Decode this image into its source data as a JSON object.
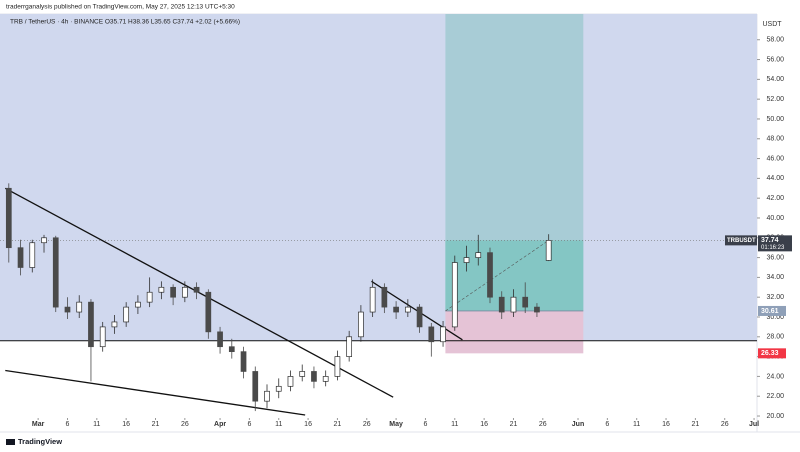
{
  "header": {
    "publisher": "traderrganalysis published on TradingView.com, May 27, 2025 12:13 UTC+5:30"
  },
  "footer": {
    "brand": "TradingView"
  },
  "chart_data": {
    "type": "candlestick",
    "legend": "TRB / TetherUS · 4h · BINANCE  O35.71  H38.36  L35.65  C37.74  +2.02 (+5.66%)",
    "y_unit": "USDT",
    "up_color": "#2e2e2e",
    "down_color": "#4a4a4a",
    "xlim": [
      -6.5,
      122.5
    ],
    "ylim": [
      19.8,
      60.6
    ],
    "xticks": [
      {
        "value": 0,
        "label": "Mar"
      },
      {
        "value": 5,
        "label": "6"
      },
      {
        "value": 10,
        "label": "11"
      },
      {
        "value": 15,
        "label": "16"
      },
      {
        "value": 20,
        "label": "21"
      },
      {
        "value": 25,
        "label": "26"
      },
      {
        "value": 31,
        "label": "Apr"
      },
      {
        "value": 36,
        "label": "6"
      },
      {
        "value": 41,
        "label": "11"
      },
      {
        "value": 46,
        "label": "16"
      },
      {
        "value": 51,
        "label": "21"
      },
      {
        "value": 56,
        "label": "26"
      },
      {
        "value": 61,
        "label": "May"
      },
      {
        "value": 66,
        "label": "6"
      },
      {
        "value": 71,
        "label": "11"
      },
      {
        "value": 76,
        "label": "16"
      },
      {
        "value": 81,
        "label": "21"
      },
      {
        "value": 86,
        "label": "26"
      },
      {
        "value": 92,
        "label": "Jun"
      },
      {
        "value": 97,
        "label": "6"
      },
      {
        "value": 102,
        "label": "11"
      },
      {
        "value": 107,
        "label": "16"
      },
      {
        "value": 112,
        "label": "21"
      },
      {
        "value": 117,
        "label": "26"
      },
      {
        "value": 122,
        "label": "Jul"
      }
    ],
    "yticks": [
      {
        "value": 20,
        "label": "20.00"
      },
      {
        "value": 22,
        "label": "22.00"
      },
      {
        "value": 24,
        "label": "24.00"
      },
      {
        "value": 26,
        "label": "26.00"
      },
      {
        "value": 28,
        "label": "28.00"
      },
      {
        "value": 30,
        "label": "30.00"
      },
      {
        "value": 32,
        "label": "32.00"
      },
      {
        "value": 34,
        "label": "34.00"
      },
      {
        "value": 36,
        "label": "36.00"
      },
      {
        "value": 38,
        "label": "38.00"
      },
      {
        "value": 40,
        "label": "40.00"
      },
      {
        "value": 42,
        "label": "42.00"
      },
      {
        "value": 44,
        "label": "44.00"
      },
      {
        "value": 46,
        "label": "46.00"
      },
      {
        "value": 48,
        "label": "48.00"
      },
      {
        "value": 50,
        "label": "50.00"
      },
      {
        "value": 52,
        "label": "52.00"
      },
      {
        "value": 54,
        "label": "54.00"
      },
      {
        "value": 56,
        "label": "56.00"
      },
      {
        "value": 58,
        "label": "58.00"
      }
    ],
    "candles": [
      {
        "x": -5,
        "o": 43,
        "h": 43.5,
        "l": 35.5,
        "c": 37
      },
      {
        "x": -3,
        "o": 37,
        "h": 37.8,
        "l": 34.2,
        "c": 35
      },
      {
        "x": -1,
        "o": 35,
        "h": 37.8,
        "l": 34.5,
        "c": 37.5
      },
      {
        "x": 1,
        "o": 37.5,
        "h": 38.3,
        "l": 36.5,
        "c": 38
      },
      {
        "x": 3,
        "o": 38,
        "h": 38.2,
        "l": 30.5,
        "c": 31
      },
      {
        "x": 5,
        "o": 31,
        "h": 32,
        "l": 29.8,
        "c": 30.5
      },
      {
        "x": 7,
        "o": 30.5,
        "h": 32.2,
        "l": 29.9,
        "c": 31.5
      },
      {
        "x": 9,
        "o": 31.5,
        "h": 31.8,
        "l": 23.5,
        "c": 27
      },
      {
        "x": 11,
        "o": 27,
        "h": 29.5,
        "l": 26.5,
        "c": 29
      },
      {
        "x": 13,
        "o": 29,
        "h": 30.2,
        "l": 28.3,
        "c": 29.5
      },
      {
        "x": 15,
        "o": 29.5,
        "h": 31.5,
        "l": 29,
        "c": 31
      },
      {
        "x": 17,
        "o": 31,
        "h": 32.2,
        "l": 30.3,
        "c": 31.5
      },
      {
        "x": 19,
        "o": 31.5,
        "h": 34,
        "l": 31,
        "c": 32.5
      },
      {
        "x": 21,
        "o": 32.5,
        "h": 33.6,
        "l": 31.8,
        "c": 33
      },
      {
        "x": 23,
        "o": 33,
        "h": 33.3,
        "l": 31.2,
        "c": 32
      },
      {
        "x": 25,
        "o": 32,
        "h": 33.6,
        "l": 31.5,
        "c": 33
      },
      {
        "x": 27,
        "o": 33,
        "h": 33.5,
        "l": 31.8,
        "c": 32.5
      },
      {
        "x": 29,
        "o": 32.5,
        "h": 32.8,
        "l": 27.8,
        "c": 28.5
      },
      {
        "x": 31,
        "o": 28.5,
        "h": 29,
        "l": 26.3,
        "c": 27
      },
      {
        "x": 33,
        "o": 27,
        "h": 27.8,
        "l": 25.8,
        "c": 26.5
      },
      {
        "x": 35,
        "o": 26.5,
        "h": 27,
        "l": 23.8,
        "c": 24.5
      },
      {
        "x": 37,
        "o": 24.5,
        "h": 25,
        "l": 20.5,
        "c": 21.5
      },
      {
        "x": 39,
        "o": 21.5,
        "h": 23.2,
        "l": 20.8,
        "c": 22.5
      },
      {
        "x": 41,
        "o": 22.5,
        "h": 23.8,
        "l": 21.8,
        "c": 23
      },
      {
        "x": 43,
        "o": 23,
        "h": 24.6,
        "l": 22.5,
        "c": 24
      },
      {
        "x": 45,
        "o": 24,
        "h": 25.2,
        "l": 23.5,
        "c": 24.5
      },
      {
        "x": 47,
        "o": 24.5,
        "h": 25,
        "l": 22.8,
        "c": 23.5
      },
      {
        "x": 49,
        "o": 23.5,
        "h": 24.6,
        "l": 23,
        "c": 24
      },
      {
        "x": 51,
        "o": 24,
        "h": 26.6,
        "l": 23.6,
        "c": 26
      },
      {
        "x": 53,
        "o": 26,
        "h": 28.6,
        "l": 25.5,
        "c": 28
      },
      {
        "x": 55,
        "o": 28,
        "h": 31.2,
        "l": 27.5,
        "c": 30.5
      },
      {
        "x": 57,
        "o": 30.5,
        "h": 33.8,
        "l": 30,
        "c": 33
      },
      {
        "x": 59,
        "o": 33,
        "h": 33.4,
        "l": 30.4,
        "c": 31
      },
      {
        "x": 61,
        "o": 31,
        "h": 31.6,
        "l": 29.8,
        "c": 30.5
      },
      {
        "x": 63,
        "o": 30.5,
        "h": 31.8,
        "l": 30,
        "c": 31
      },
      {
        "x": 65,
        "o": 31,
        "h": 31.3,
        "l": 28.4,
        "c": 29
      },
      {
        "x": 67,
        "o": 29,
        "h": 29.4,
        "l": 26,
        "c": 27.5
      },
      {
        "x": 69,
        "o": 27.5,
        "h": 29.6,
        "l": 27,
        "c": 29
      },
      {
        "x": 71,
        "o": 29,
        "h": 36.2,
        "l": 28.6,
        "c": 35.5
      },
      {
        "x": 73,
        "o": 35.5,
        "h": 37.2,
        "l": 34.6,
        "c": 36
      },
      {
        "x": 75,
        "o": 36,
        "h": 38.3,
        "l": 35.2,
        "c": 36.5
      },
      {
        "x": 77,
        "o": 36.5,
        "h": 37,
        "l": 31.4,
        "c": 32
      },
      {
        "x": 79,
        "o": 32,
        "h": 32.6,
        "l": 29.8,
        "c": 30.5
      },
      {
        "x": 81,
        "o": 30.5,
        "h": 32.8,
        "l": 30,
        "c": 32
      },
      {
        "x": 83,
        "o": 32,
        "h": 33.5,
        "l": 30.4,
        "c": 31
      },
      {
        "x": 85,
        "o": 31,
        "h": 31.4,
        "l": 30,
        "c": 30.5
      },
      {
        "x": 87,
        "o": 35.71,
        "h": 38.36,
        "l": 35.65,
        "c": 37.74
      }
    ],
    "zone": {
      "from": 27.6,
      "color": "#d0d8ee"
    },
    "support_level": 27.6,
    "position": {
      "x_start": 69.4,
      "x_end": 92.9,
      "entry": 30.61,
      "stop": 26.33,
      "target": 61,
      "current": 37.74,
      "entry_label": "30.61",
      "stop_label": "26.33",
      "current_label": "37.74",
      "symbol": "TRBUSDT",
      "countdown": "01:16:23",
      "profit_color": "#a8ccd6",
      "progress_color": "#84c6c4",
      "loss_color": "#e5c3d6"
    },
    "trendlines": [
      {
        "x1": -5.6,
        "y1": 43,
        "x2": 60.5,
        "y2": 21.9
      },
      {
        "x1": -5.6,
        "y1": 24.6,
        "x2": 45.5,
        "y2": 20.1
      },
      {
        "x1": 56.8,
        "y1": 33.6,
        "x2": 72.3,
        "y2": 27.7
      }
    ]
  }
}
